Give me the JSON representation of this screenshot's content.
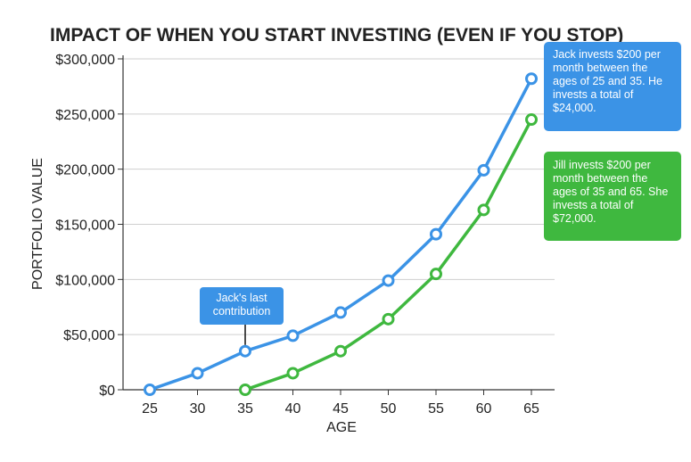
{
  "colors": {
    "jack": "#3b93e6",
    "jill": "#3fb83f",
    "grid": "#cfcfcf",
    "axis": "#333333"
  },
  "chart_data": {
    "type": "line",
    "title": "IMPACT OF WHEN YOU START INVESTING (EVEN IF YOU STOP)",
    "xlabel": "AGE",
    "ylabel": "PORTFOLIO VALUE",
    "x_ticks": [
      "25",
      "30",
      "35",
      "40",
      "45",
      "50",
      "55",
      "60",
      "65"
    ],
    "y_ticks": [
      {
        "value": 0,
        "label": "$0"
      },
      {
        "value": 50000,
        "label": "$50,000"
      },
      {
        "value": 100000,
        "label": "$100,000"
      },
      {
        "value": 150000,
        "label": "$150,000"
      },
      {
        "value": 200000,
        "label": "$200,000"
      },
      {
        "value": 250000,
        "label": "$250,000"
      },
      {
        "value": 300000,
        "label": "$300,000"
      }
    ],
    "xlim": [
      25,
      65
    ],
    "ylim": [
      0,
      300000
    ],
    "grid": true,
    "series": [
      {
        "id": "jack",
        "x": [
          25,
          30,
          35,
          40,
          45,
          50,
          55,
          60,
          65
        ],
        "values": [
          0,
          15000,
          35000,
          49000,
          70000,
          99000,
          141000,
          199000,
          282000
        ]
      },
      {
        "id": "jill",
        "x": [
          35,
          40,
          45,
          50,
          55,
          60,
          65
        ],
        "values": [
          0,
          15000,
          35000,
          64000,
          105000,
          163000,
          245000
        ]
      }
    ],
    "annotations": {
      "jack_note": "Jack invests $200 per month between the ages of 25 and 35. He invests a total of $24,000.",
      "jill_note": "Jill invests $200 per month between the ages of 35 and 65. She invests a total of $72,000.",
      "last_contribution": "Jack's last contribution",
      "last_contribution_at": {
        "x": 35,
        "y": 35000
      }
    }
  }
}
